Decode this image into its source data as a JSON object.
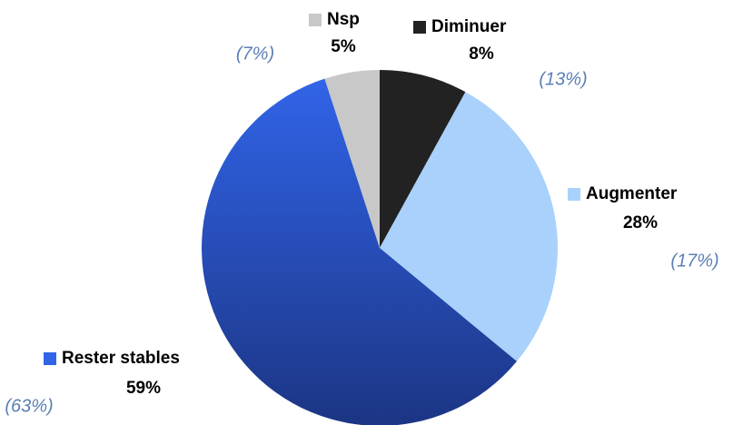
{
  "chart_data": {
    "type": "pie",
    "categories": [
      "Diminuer",
      "Augmenter",
      "Rester stables",
      "Nsp"
    ],
    "values": [
      8,
      28,
      59,
      5
    ],
    "value_labels": [
      "8%",
      "28%",
      "59%",
      "5%"
    ],
    "colors": [
      "#222222",
      "#a9d1fb",
      "#3164e8",
      "#c8c8c8"
    ],
    "annotations": [
      "(13%)",
      "(17%)",
      "(63%)",
      "(7%)"
    ]
  }
}
